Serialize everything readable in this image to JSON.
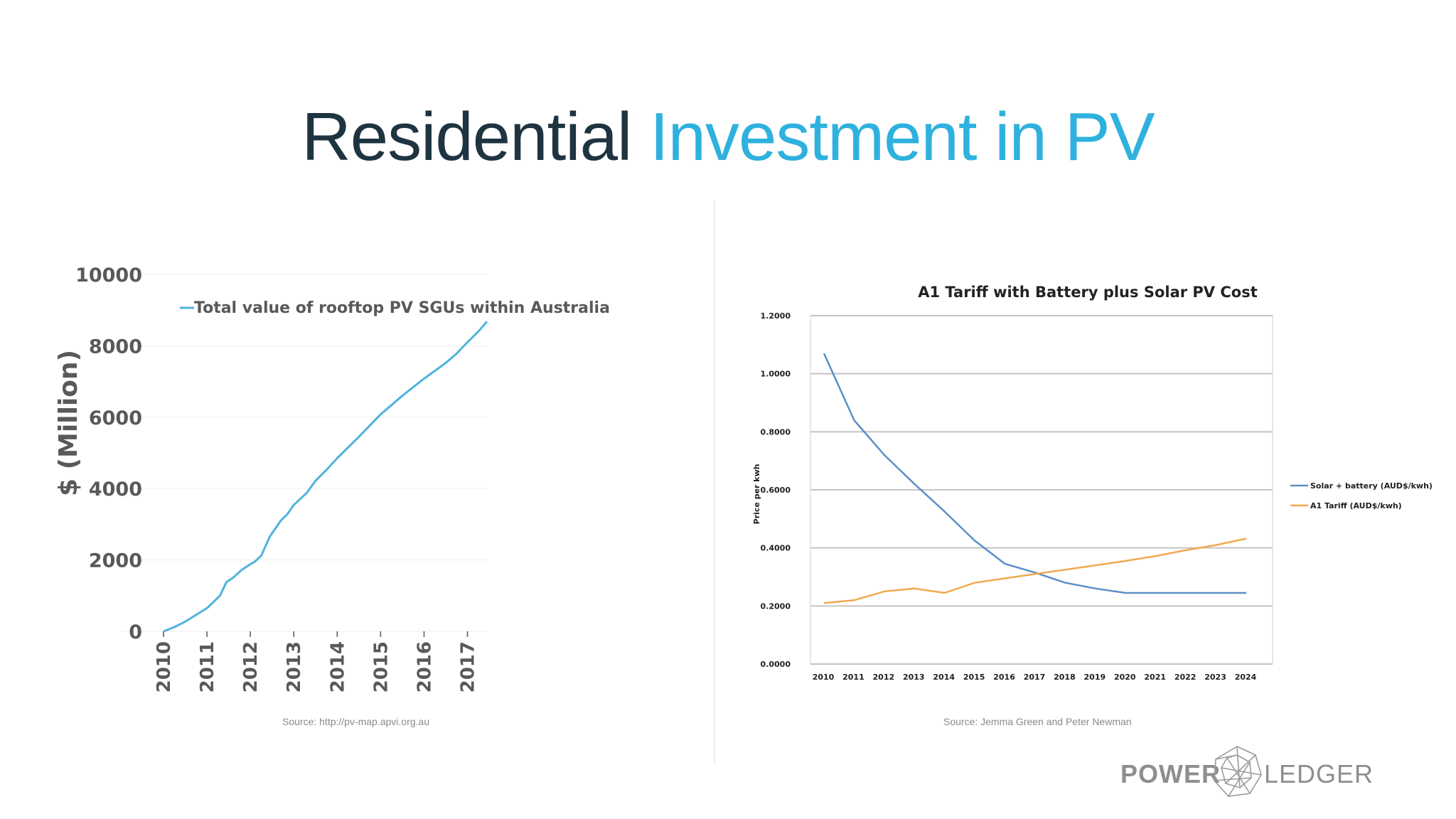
{
  "slide": {
    "title_part1": "Residential ",
    "title_part2": "Investment in PV",
    "left_source": "Source: http://pv-map.apvi.org.au",
    "right_source": "Source: Jemma Green and Peter Newman",
    "logo_power": "POWER",
    "logo_ledger": "LEDGER"
  },
  "colors": {
    "title_dark": "#1e3440",
    "title_light": "#2fb1de",
    "left_series": "#4fb3dc",
    "solar_battery": "#5b8fc7",
    "a1_tariff": "#f0a850"
  },
  "chart_data": [
    {
      "type": "line",
      "title": "",
      "xlabel": "",
      "ylabel": "$ (Million)",
      "xlim": [
        2010,
        2017.45
      ],
      "ylim": [
        0,
        10000
      ],
      "xticks": [
        "2010",
        "2011",
        "2012",
        "2013",
        "2014",
        "2015",
        "2016",
        "2017"
      ],
      "yticks": [
        "10000",
        "8000",
        "6000",
        "4000",
        "2000",
        "0"
      ],
      "grid": true,
      "legend": "top-left",
      "series": [
        {
          "name": "Total value of rooftop PV SGUs within Australia",
          "x": [
            2010,
            2010.25,
            2010.5,
            2010.75,
            2011,
            2011.15,
            2011.3,
            2011.45,
            2011.6,
            2011.8,
            2012,
            2012.1,
            2012.25,
            2012.45,
            2012.7,
            2012.85,
            2013,
            2013.3,
            2013.5,
            2013.75,
            2014,
            2014.5,
            2015,
            2015.5,
            2016,
            2016.5,
            2016.75,
            2017,
            2017.25,
            2017.45
          ],
          "y": [
            0,
            120,
            270,
            460,
            650,
            820,
            1000,
            1380,
            1500,
            1720,
            1880,
            1950,
            2120,
            2660,
            3100,
            3280,
            3540,
            3880,
            4220,
            4520,
            4850,
            5450,
            6080,
            6600,
            7080,
            7520,
            7780,
            8100,
            8400,
            8680
          ]
        }
      ]
    },
    {
      "type": "line",
      "title": "A1 Tariff with Battery plus Solar PV Cost",
      "xlabel": "",
      "ylabel": "Price per kwh",
      "ylim": [
        0,
        1.2
      ],
      "xticks": [
        "2010",
        "2011",
        "2012",
        "2013",
        "2014",
        "2015",
        "2016",
        "2017",
        "2018",
        "2019",
        "2020",
        "2021",
        "2022",
        "2023",
        "2024"
      ],
      "yticks": [
        "1.2000",
        "1.0000",
        "0.8000",
        "0.6000",
        "0.4000",
        "0.2000",
        "0.0000"
      ],
      "grid": true,
      "legend": "right",
      "x": [
        2010,
        2011,
        2012,
        2013,
        2014,
        2015,
        2016,
        2017,
        2018,
        2019,
        2020,
        2021,
        2022,
        2023,
        2024
      ],
      "series": [
        {
          "name": "Solar + battery (AUD$/kwh)",
          "values": [
            1.07,
            0.84,
            0.72,
            0.62,
            0.525,
            0.425,
            0.345,
            0.315,
            0.28,
            0.26,
            0.245,
            0.245,
            0.245,
            0.245,
            0.245
          ]
        },
        {
          "name": "A1 Tariff (AUD$/kwh)",
          "values": [
            0.21,
            0.22,
            0.25,
            0.26,
            0.245,
            0.28,
            0.295,
            0.31,
            0.325,
            0.34,
            0.355,
            0.372,
            0.392,
            0.41,
            0.432
          ]
        }
      ]
    }
  ]
}
